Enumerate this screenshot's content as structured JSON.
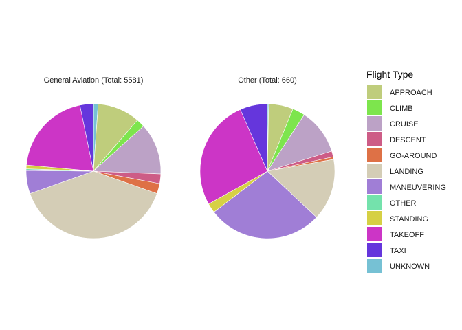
{
  "chart_data": {
    "type": "pie",
    "legend": {
      "title": "Flight Type",
      "placement": "right",
      "entries": [
        {
          "label": "APPROACH",
          "color": "#bfcd7c"
        },
        {
          "label": "CLIMB",
          "color": "#7de54d"
        },
        {
          "label": "CRUISE",
          "color": "#bca2c6"
        },
        {
          "label": "DESCENT",
          "color": "#cd5c86"
        },
        {
          "label": "GO-AROUND",
          "color": "#de7146"
        },
        {
          "label": "LANDING",
          "color": "#d4cdb6"
        },
        {
          "label": "MANEUVERING",
          "color": "#a07ed6"
        },
        {
          "label": "OTHER",
          "color": "#74e2ac"
        },
        {
          "label": "STANDING",
          "color": "#d6d044"
        },
        {
          "label": "TAKEOFF",
          "color": "#cc35c6"
        },
        {
          "label": "TAXI",
          "color": "#6536dc"
        },
        {
          "label": "UNKNOWN",
          "color": "#76c1d4"
        }
      ]
    },
    "panels": [
      {
        "title": "General Aviation (Total: 5581)",
        "slices": [
          {
            "label": "UNKNOWN",
            "value": 1.1
          },
          {
            "label": "APPROACH",
            "value": 10.1
          },
          {
            "label": "CLIMB",
            "value": 2.0
          },
          {
            "label": "CRUISE",
            "value": 12.2
          },
          {
            "label": "DESCENT",
            "value": 2.3
          },
          {
            "label": "GO-AROUND",
            "value": 2.4
          },
          {
            "label": "LANDING",
            "value": 38.8
          },
          {
            "label": "MANEUVERING",
            "value": 5.5
          },
          {
            "label": "OTHER",
            "value": 0.4
          },
          {
            "label": "STANDING",
            "value": 0.9
          },
          {
            "label": "TAKEOFF",
            "value": 20.1
          },
          {
            "label": "TAXI",
            "value": 3.2
          }
        ]
      },
      {
        "title": "Other (Total: 660)",
        "slices": [
          {
            "label": "UNKNOWN",
            "value": 0.3
          },
          {
            "label": "APPROACH",
            "value": 5.9
          },
          {
            "label": "CLIMB",
            "value": 3.0
          },
          {
            "label": "CRUISE",
            "value": 11.0
          },
          {
            "label": "DESCENT",
            "value": 1.4
          },
          {
            "label": "GO-AROUND",
            "value": 0.6
          },
          {
            "label": "LANDING",
            "value": 14.8
          },
          {
            "label": "MANEUVERING",
            "value": 27.6
          },
          {
            "label": "STANDING",
            "value": 2.3
          },
          {
            "label": "TAKEOFF",
            "value": 26.5
          },
          {
            "label": "TAXI",
            "value": 6.6
          }
        ]
      }
    ]
  }
}
